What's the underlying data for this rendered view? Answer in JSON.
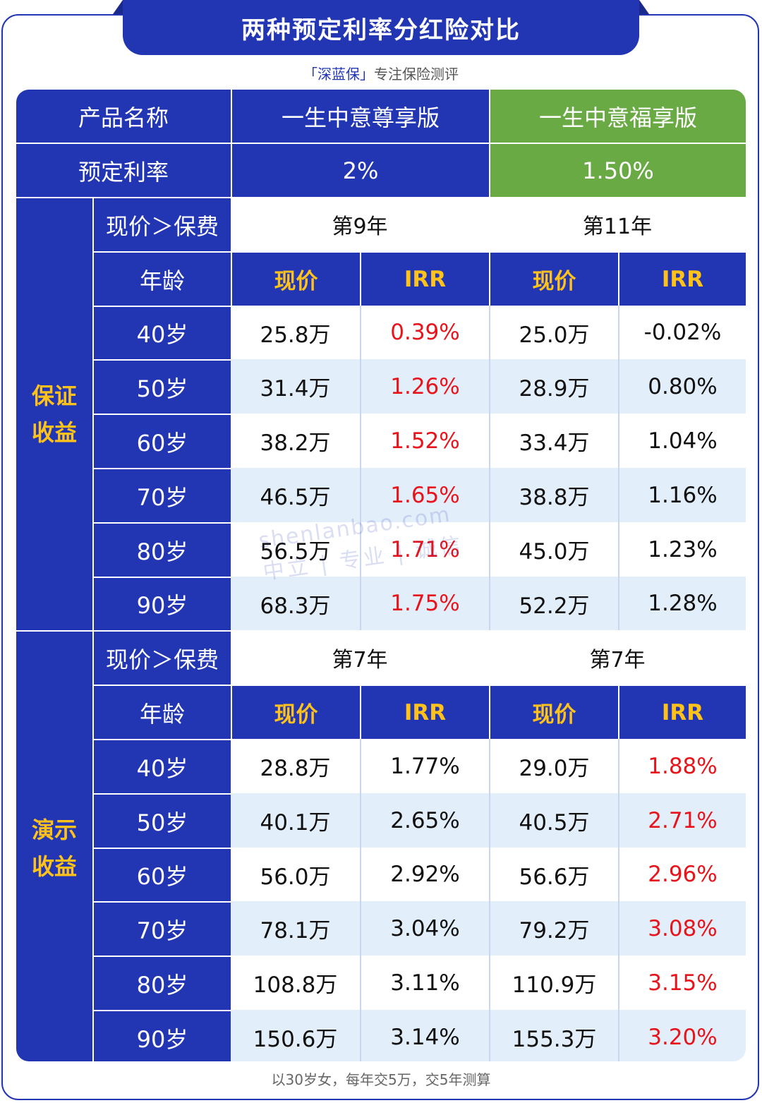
{
  "title": "两种预定利率分红险对比",
  "brand": {
    "name": "「深蓝保」",
    "tagline": "专注保险测评"
  },
  "header": {
    "product_label": "产品名称",
    "product_a": "一生中意尊享版",
    "product_b": "一生中意福享版",
    "rate_label": "预定利率",
    "rate_a": "2%",
    "rate_b": "1.50%"
  },
  "sections": [
    {
      "label": [
        "保证",
        "收益"
      ],
      "breakeven_label": "现价＞保费",
      "breakeven_a": "第9年",
      "breakeven_b": "第11年",
      "age_label": "年龄",
      "col_value": "现价",
      "col_irr": "IRR",
      "rows": [
        {
          "age": "40岁",
          "a_value": "25.8万",
          "a_irr": "0.39%",
          "b_value": "25.0万",
          "b_irr": "-0.02%"
        },
        {
          "age": "50岁",
          "a_value": "31.4万",
          "a_irr": "1.26%",
          "b_value": "28.9万",
          "b_irr": "0.80%"
        },
        {
          "age": "60岁",
          "a_value": "38.2万",
          "a_irr": "1.52%",
          "b_value": "33.4万",
          "b_irr": "1.04%"
        },
        {
          "age": "70岁",
          "a_value": "46.5万",
          "a_irr": "1.65%",
          "b_value": "38.8万",
          "b_irr": "1.16%"
        },
        {
          "age": "80岁",
          "a_value": "56.5万",
          "a_irr": "1.71%",
          "b_value": "45.0万",
          "b_irr": "1.23%"
        },
        {
          "age": "90岁",
          "a_value": "68.3万",
          "a_irr": "1.75%",
          "b_value": "52.2万",
          "b_irr": "1.28%"
        }
      ]
    },
    {
      "label": [
        "演示",
        "收益"
      ],
      "breakeven_label": "现价＞保费",
      "breakeven_a": "第7年",
      "breakeven_b": "第7年",
      "age_label": "年龄",
      "col_value": "现价",
      "col_irr": "IRR",
      "rows": [
        {
          "age": "40岁",
          "a_value": "28.8万",
          "a_irr": "1.77%",
          "b_value": "29.0万",
          "b_irr": "1.88%"
        },
        {
          "age": "50岁",
          "a_value": "40.1万",
          "a_irr": "2.65%",
          "b_value": "40.5万",
          "b_irr": "2.71%"
        },
        {
          "age": "60岁",
          "a_value": "56.0万",
          "a_irr": "2.92%",
          "b_value": "56.6万",
          "b_irr": "2.96%"
        },
        {
          "age": "70岁",
          "a_value": "78.1万",
          "a_irr": "3.04%",
          "b_value": "79.2万",
          "b_irr": "3.08%"
        },
        {
          "age": "80岁",
          "a_value": "108.8万",
          "a_irr": "3.11%",
          "b_value": "110.9万",
          "b_irr": "3.15%"
        },
        {
          "age": "90岁",
          "a_value": "150.6万",
          "a_irr": "3.14%",
          "b_value": "155.3万",
          "b_irr": "3.20%"
        }
      ]
    }
  ],
  "watermark": {
    "domain": "shenlanbao.com",
    "slogan": "中立 | 专业 | 诚信"
  },
  "footer": "以30岁女，每年交5万，交5年测算",
  "colors": {
    "primary": "#2236b4",
    "green": "#6aaa45",
    "gold": "#ffc21a",
    "red": "#e8141b",
    "stripe": "#e3eefb"
  }
}
